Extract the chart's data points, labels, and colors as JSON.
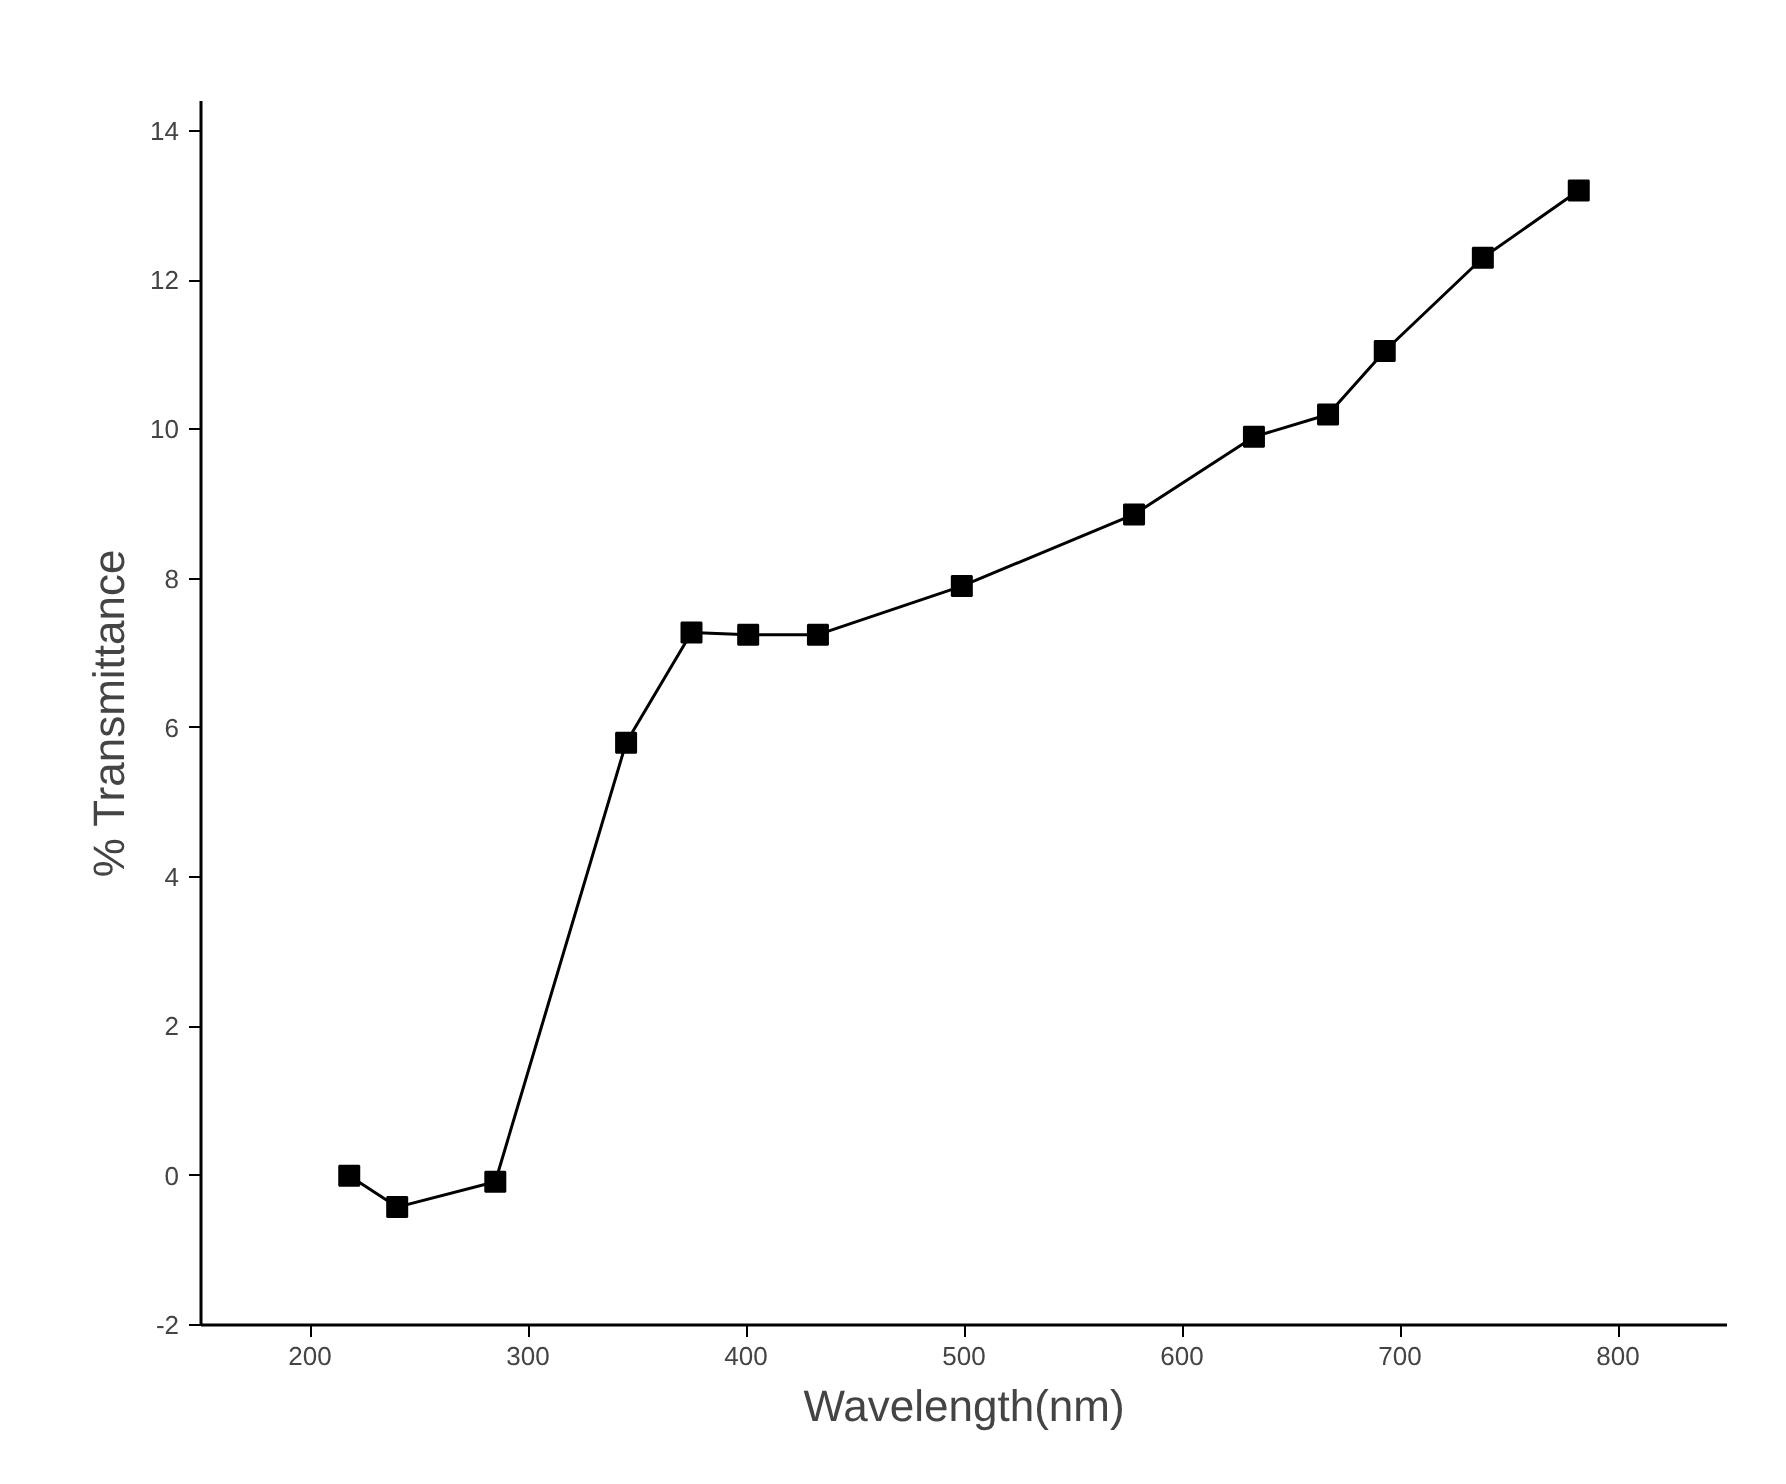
{
  "chart_data": {
    "type": "line",
    "xlabel": "Wavelength(nm)",
    "ylabel": "% Transmittance",
    "x": [
      218,
      240,
      285,
      345,
      375,
      401,
      433,
      499,
      578,
      633,
      667,
      693,
      738,
      782
    ],
    "series": [
      {
        "color": "#000000",
        "values": [
          0.0,
          -0.42,
          -0.08,
          5.8,
          7.28,
          7.25,
          7.25,
          7.9,
          8.86,
          9.9,
          10.2,
          11.05,
          12.3,
          13.2
        ]
      }
    ],
    "xlim": [
      150,
      850
    ],
    "xticks": [
      200,
      300,
      400,
      500,
      600,
      700,
      800
    ],
    "ylim": [
      -2,
      14.4
    ],
    "yticks": [
      -2,
      0,
      2,
      4,
      6,
      8,
      10,
      12,
      14
    ],
    "grid": false,
    "marker": "square",
    "line_style": "solid"
  }
}
